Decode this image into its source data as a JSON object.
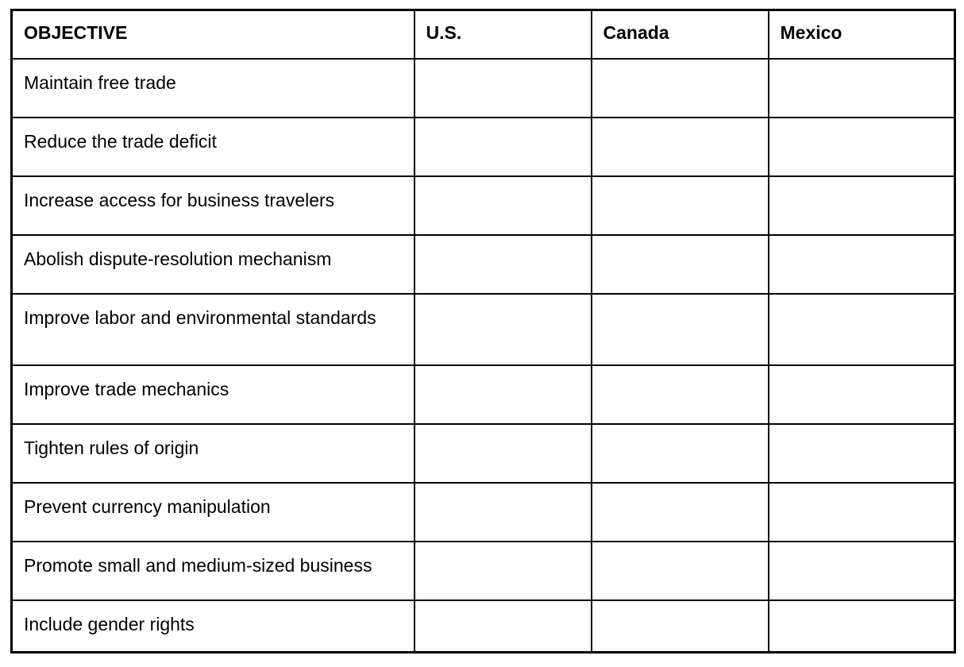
{
  "table": {
    "headers": {
      "objective": "OBJECTIVE",
      "us": "U.S.",
      "canada": "Canada",
      "mexico": "Mexico"
    },
    "fill_color": "#6fac4b",
    "empty_color": "#ffffff",
    "border_color": "#000000",
    "rows": [
      {
        "objective": "Maintain free trade",
        "us": true,
        "canada": true,
        "mexico": true
      },
      {
        "objective": "Reduce the trade deficit",
        "us": true,
        "canada": false,
        "mexico": false
      },
      {
        "objective": "Increase access for business travelers",
        "us": false,
        "canada": true,
        "mexico": true
      },
      {
        "objective": "Abolish dispute-resolution mechanism",
        "us": true,
        "canada": false,
        "mexico": false
      },
      {
        "objective": "Improve labor and environmental standards",
        "us": true,
        "canada": true,
        "mexico": true
      },
      {
        "objective": "Improve trade mechanics",
        "us": true,
        "canada": true,
        "mexico": true
      },
      {
        "objective": "Tighten rules of origin",
        "us": true,
        "canada": false,
        "mexico": false
      },
      {
        "objective": "Prevent currency manipulation",
        "us": true,
        "canada": false,
        "mexico": false
      },
      {
        "objective": "Promote small and medium-sized business",
        "us": true,
        "canada": false,
        "mexico": true
      },
      {
        "objective": "Include gender rights",
        "us": false,
        "canada": true,
        "mexico": true
      }
    ]
  },
  "chart_data": {
    "type": "table",
    "columns": [
      "OBJECTIVE",
      "U.S.",
      "Canada",
      "Mexico"
    ],
    "filled_cell_color": "#6fac4b",
    "rows": [
      {
        "objective": "Maintain free trade",
        "values": [
          true,
          true,
          true
        ]
      },
      {
        "objective": "Reduce the trade deficit",
        "values": [
          true,
          false,
          false
        ]
      },
      {
        "objective": "Increase access for business travelers",
        "values": [
          false,
          true,
          true
        ]
      },
      {
        "objective": "Abolish dispute-resolution mechanism",
        "values": [
          true,
          false,
          false
        ]
      },
      {
        "objective": "Improve labor and environmental standards",
        "values": [
          true,
          true,
          true
        ]
      },
      {
        "objective": "Improve trade mechanics",
        "values": [
          true,
          true,
          true
        ]
      },
      {
        "objective": "Tighten rules of origin",
        "values": [
          true,
          false,
          false
        ]
      },
      {
        "objective": "Prevent currency manipulation",
        "values": [
          true,
          false,
          false
        ]
      },
      {
        "objective": "Promote small and medium-sized business",
        "values": [
          true,
          false,
          true
        ]
      },
      {
        "objective": "Include gender rights",
        "values": [
          false,
          true,
          true
        ]
      }
    ]
  }
}
